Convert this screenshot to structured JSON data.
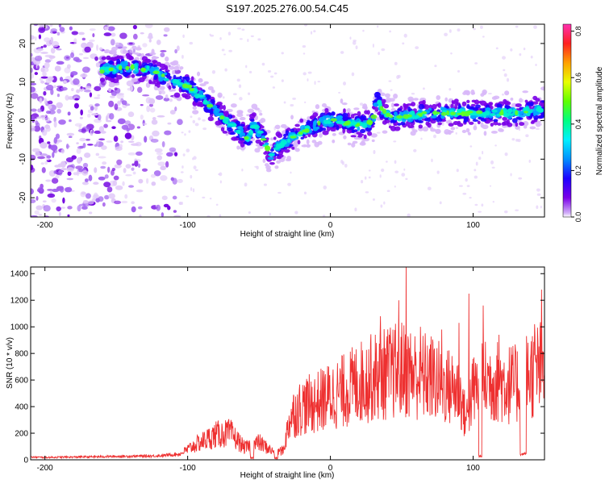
{
  "chart_data": [
    {
      "type": "heatmap",
      "title": "S197.2025.276.00.54.C45",
      "xlabel": "Height of straight line (km)",
      "ylabel": "Frequency (Hz)",
      "xlim": [
        -210,
        150
      ],
      "ylim": [
        -25,
        25
      ],
      "xticks": [
        -200,
        -100,
        0,
        100
      ],
      "yticks": [
        -20,
        -10,
        0,
        10,
        20
      ],
      "colorbar": {
        "label": "Normalized spectral amplitude",
        "range": [
          0,
          0.83
        ],
        "ticks": [
          0.0,
          0.2,
          0.4,
          0.6,
          0.8
        ],
        "tick_labels": [
          "0.0",
          "0.2",
          "0.4",
          "0.6",
          "0.8"
        ]
      },
      "ridge": {
        "x": [
          -160,
          -140,
          -125,
          -110,
          -100,
          -90,
          -80,
          -70,
          -62,
          -58,
          -54,
          -48,
          -42,
          -38,
          -30,
          -20,
          -10,
          -2,
          5,
          15,
          25,
          30,
          33,
          36,
          42,
          50,
          70,
          90,
          110,
          130,
          150
        ],
        "freq": [
          13,
          14,
          13,
          10,
          9,
          6,
          2,
          -1,
          -3,
          -5,
          -1,
          -4,
          -9,
          -7,
          -5,
          -3,
          -1,
          0,
          0,
          -1,
          -1,
          0,
          6,
          3,
          1,
          1,
          2,
          2,
          2,
          2,
          3
        ]
      },
      "noise_region_x": [
        -210,
        -105
      ]
    },
    {
      "type": "line",
      "xlabel": "Height of straight line (km)",
      "ylabel": "SNR (10 * v/v)",
      "xlim": [
        -210,
        150
      ],
      "ylim": [
        0,
        1450
      ],
      "xticks": [
        -200,
        -100,
        0,
        100
      ],
      "yticks": [
        0,
        200,
        400,
        600,
        800,
        1000,
        1200,
        1400
      ],
      "color": "#ee3030",
      "envelope": {
        "x": [
          -210,
          -200,
          -150,
          -120,
          -105,
          -95,
          -80,
          -70,
          -60,
          -50,
          -40,
          -33,
          -28,
          -20,
          -10,
          0,
          10,
          20,
          30,
          40,
          50,
          60,
          70,
          80,
          90,
          95,
          100,
          105,
          110,
          120,
          130,
          140,
          150
        ],
        "y": [
          20,
          18,
          25,
          30,
          45,
          110,
          190,
          200,
          90,
          130,
          60,
          70,
          330,
          400,
          430,
          480,
          520,
          580,
          620,
          650,
          680,
          640,
          620,
          560,
          520,
          300,
          520,
          560,
          600,
          580,
          560,
          650,
          700
        ]
      },
      "peaks": {
        "x": [
          28,
          35,
          48,
          53,
          63,
          78,
          90,
          97,
          107,
          118,
          133,
          143,
          148
        ],
        "y": [
          880,
          1080,
          1200,
          1450,
          1000,
          980,
          1030,
          1250,
          1160,
          940,
          1050,
          1020,
          1280
        ]
      },
      "dips": {
        "x": [
          -55,
          -38,
          105,
          134,
          136
        ],
        "y": [
          5,
          5,
          20,
          30,
          40
        ]
      }
    }
  ]
}
